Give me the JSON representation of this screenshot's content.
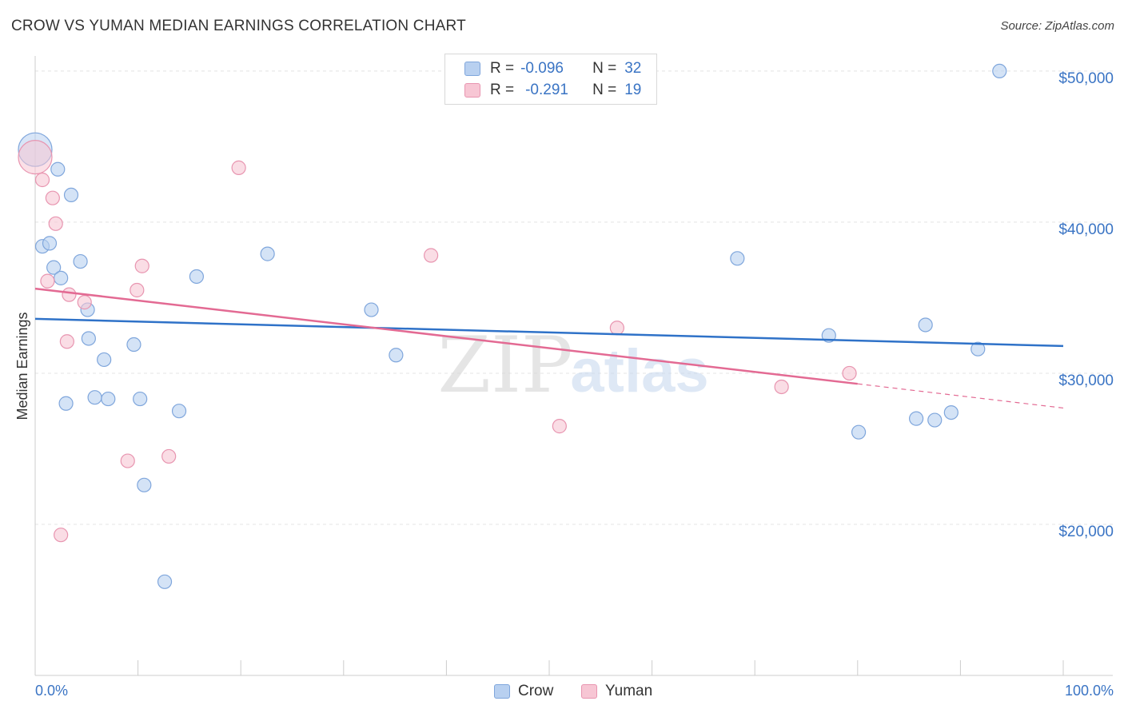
{
  "title": "CROW VS YUMAN MEDIAN EARNINGS CORRELATION CHART",
  "source": "Source: ZipAtlas.com",
  "watermark": {
    "zip": "ZIP",
    "atlas": "atlas"
  },
  "legend": {
    "rows": [
      {
        "r_label": "R =",
        "r_value": "-0.096",
        "n_label": "N =",
        "n_value": "32"
      },
      {
        "r_label": "R =",
        "r_value": "-0.291",
        "n_label": "N =",
        "n_value": "19"
      }
    ]
  },
  "bottom_legend": {
    "series1": "Crow",
    "series2": "Yuman"
  },
  "colors": {
    "crow_fill": "#b8d0f0",
    "crow_stroke": "#7fa6dc",
    "crow_line": "#2f72c8",
    "yuman_fill": "#f7c6d4",
    "yuman_stroke": "#e895b0",
    "yuman_line": "#e36a93",
    "axis_text": "#3a74c4",
    "grid": "#e4e4e4"
  },
  "chart_data": {
    "type": "scatter",
    "title": "CROW VS YUMAN MEDIAN EARNINGS CORRELATION CHART",
    "xlabel": "",
    "ylabel": "Median Earnings",
    "xlim": [
      0,
      100
    ],
    "ylim": [
      10000,
      51000
    ],
    "x_tick_labels": [
      "0.0%",
      "100.0%"
    ],
    "y_ticks": [
      20000,
      30000,
      40000,
      50000
    ],
    "y_tick_labels": [
      "$20,000",
      "$30,000",
      "$40,000",
      "$50,000"
    ],
    "series": [
      {
        "name": "Crow",
        "trend": {
          "x0": 0,
          "y0": 33600,
          "x1": 100,
          "y1": 31800
        },
        "points": [
          {
            "x": 0.0,
            "y": 44800,
            "big": true
          },
          {
            "x": 2.2,
            "y": 43500
          },
          {
            "x": 3.5,
            "y": 41800
          },
          {
            "x": 0.7,
            "y": 38400
          },
          {
            "x": 1.4,
            "y": 38600
          },
          {
            "x": 1.8,
            "y": 37000
          },
          {
            "x": 2.5,
            "y": 36300
          },
          {
            "x": 4.4,
            "y": 37400
          },
          {
            "x": 5.1,
            "y": 34200
          },
          {
            "x": 5.2,
            "y": 32300
          },
          {
            "x": 6.7,
            "y": 30900
          },
          {
            "x": 9.6,
            "y": 31900
          },
          {
            "x": 3.0,
            "y": 28000
          },
          {
            "x": 5.8,
            "y": 28400
          },
          {
            "x": 7.1,
            "y": 28300
          },
          {
            "x": 10.2,
            "y": 28300
          },
          {
            "x": 14.0,
            "y": 27500
          },
          {
            "x": 10.6,
            "y": 22600
          },
          {
            "x": 12.6,
            "y": 16200
          },
          {
            "x": 15.7,
            "y": 36400
          },
          {
            "x": 22.6,
            "y": 37900
          },
          {
            "x": 32.7,
            "y": 34200
          },
          {
            "x": 35.1,
            "y": 31200
          },
          {
            "x": 68.3,
            "y": 37600
          },
          {
            "x": 77.2,
            "y": 32500
          },
          {
            "x": 80.1,
            "y": 26100
          },
          {
            "x": 85.7,
            "y": 27000
          },
          {
            "x": 87.5,
            "y": 26900
          },
          {
            "x": 86.6,
            "y": 33200
          },
          {
            "x": 89.1,
            "y": 27400
          },
          {
            "x": 91.7,
            "y": 31600
          },
          {
            "x": 93.8,
            "y": 50000
          }
        ]
      },
      {
        "name": "Yuman",
        "trend": {
          "x0": 0,
          "y0": 35600,
          "x1": 80,
          "y1": 29300,
          "dash_x1": 100,
          "dash_y1": 27700
        },
        "points": [
          {
            "x": 0.0,
            "y": 44300,
            "big": true
          },
          {
            "x": 0.7,
            "y": 42800
          },
          {
            "x": 1.7,
            "y": 41600
          },
          {
            "x": 2.0,
            "y": 39900
          },
          {
            "x": 1.2,
            "y": 36100
          },
          {
            "x": 3.3,
            "y": 35200
          },
          {
            "x": 4.8,
            "y": 34700
          },
          {
            "x": 3.1,
            "y": 32100
          },
          {
            "x": 10.4,
            "y": 37100
          },
          {
            "x": 9.9,
            "y": 35500
          },
          {
            "x": 9.0,
            "y": 24200
          },
          {
            "x": 13.0,
            "y": 24500
          },
          {
            "x": 2.5,
            "y": 19300
          },
          {
            "x": 19.8,
            "y": 43600
          },
          {
            "x": 38.5,
            "y": 37800
          },
          {
            "x": 51.0,
            "y": 26500
          },
          {
            "x": 56.6,
            "y": 33000
          },
          {
            "x": 72.6,
            "y": 29100
          },
          {
            "x": 79.2,
            "y": 30000
          }
        ]
      }
    ]
  }
}
